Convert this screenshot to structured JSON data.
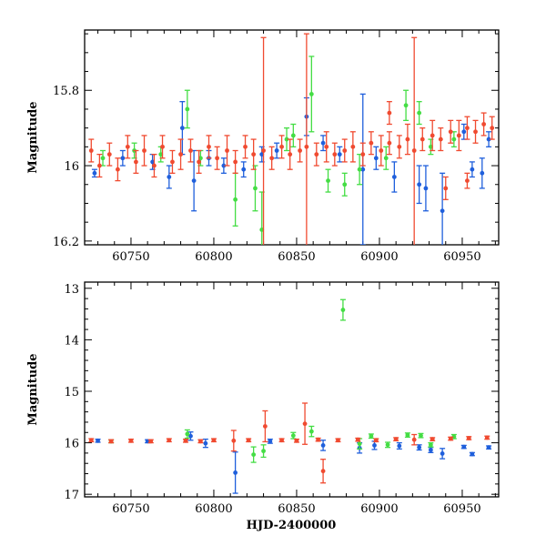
{
  "chart_data": [
    {
      "id": "top",
      "type": "scatter",
      "title": "",
      "xlabel": "",
      "ylabel": "Magnitude",
      "xlim": [
        60722,
        60972
      ],
      "ylim": [
        16.21,
        15.64
      ],
      "y_inverted": true,
      "xticks": [
        60750,
        60800,
        60850,
        60900,
        60950
      ],
      "xtick_labels": [
        "60750",
        "60800",
        "60850",
        "60900",
        "60950"
      ],
      "yticks": [
        15.8,
        16,
        16.2
      ],
      "ytick_labels": [
        "15.8",
        "16",
        "16.2"
      ],
      "series": [
        {
          "name": "blue",
          "color": "#1f5fdc",
          "points": [
            {
              "x": 60728,
              "y": 16.02,
              "e": 0.01
            },
            {
              "x": 60745,
              "y": 15.98,
              "e": 0.02
            },
            {
              "x": 60763,
              "y": 15.99,
              "e": 0.02
            },
            {
              "x": 60773,
              "y": 16.03,
              "e": 0.03
            },
            {
              "x": 60781,
              "y": 15.9,
              "e": 0.07
            },
            {
              "x": 60788,
              "y": 16.04,
              "e": 0.08
            },
            {
              "x": 60797,
              "y": 15.98,
              "e": 0.02
            },
            {
              "x": 60806,
              "y": 16.0,
              "e": 0.02
            },
            {
              "x": 60818,
              "y": 16.01,
              "e": 0.02
            },
            {
              "x": 60829,
              "y": 15.97,
              "e": 0.02
            },
            {
              "x": 60838,
              "y": 15.96,
              "e": 0.02
            },
            {
              "x": 60856,
              "y": 15.87,
              "e": 0.05
            },
            {
              "x": 60866,
              "y": 15.94,
              "e": 0.02
            },
            {
              "x": 60876,
              "y": 15.97,
              "e": 0.02
            },
            {
              "x": 60890,
              "y": 16.01,
              "e": 0.2
            },
            {
              "x": 60898,
              "y": 15.98,
              "e": 0.03
            },
            {
              "x": 60909,
              "y": 16.03,
              "e": 0.04
            },
            {
              "x": 60924,
              "y": 16.05,
              "e": 0.05
            },
            {
              "x": 60928,
              "y": 16.06,
              "e": 0.06
            },
            {
              "x": 60938,
              "y": 16.12,
              "e": 0.1
            },
            {
              "x": 60951,
              "y": 15.91,
              "e": 0.02
            },
            {
              "x": 60956,
              "y": 16.01,
              "e": 0.02
            },
            {
              "x": 60962,
              "y": 16.02,
              "e": 0.04
            },
            {
              "x": 60966,
              "y": 15.93,
              "e": 0.02
            }
          ]
        },
        {
          "name": "green",
          "color": "#44dd44",
          "points": [
            {
              "x": 60733,
              "y": 15.98,
              "e": 0.02
            },
            {
              "x": 60752,
              "y": 15.96,
              "e": 0.02
            },
            {
              "x": 60768,
              "y": 15.97,
              "e": 0.02
            },
            {
              "x": 60784,
              "y": 15.85,
              "e": 0.05
            },
            {
              "x": 60792,
              "y": 15.98,
              "e": 0.02
            },
            {
              "x": 60813,
              "y": 16.09,
              "e": 0.07
            },
            {
              "x": 60825,
              "y": 16.06,
              "e": 0.06
            },
            {
              "x": 60829,
              "y": 16.17,
              "e": 0.1
            },
            {
              "x": 60844,
              "y": 15.93,
              "e": 0.03
            },
            {
              "x": 60848,
              "y": 15.92,
              "e": 0.03
            },
            {
              "x": 60859,
              "y": 15.81,
              "e": 0.1
            },
            {
              "x": 60869,
              "y": 16.04,
              "e": 0.03
            },
            {
              "x": 60879,
              "y": 16.05,
              "e": 0.03
            },
            {
              "x": 60888,
              "y": 16.01,
              "e": 0.04
            },
            {
              "x": 60904,
              "y": 15.98,
              "e": 0.03
            },
            {
              "x": 60916,
              "y": 15.84,
              "e": 0.04
            },
            {
              "x": 60924,
              "y": 15.86,
              "e": 0.03
            },
            {
              "x": 60931,
              "y": 15.95,
              "e": 0.02
            },
            {
              "x": 60945,
              "y": 15.93,
              "e": 0.02
            }
          ]
        },
        {
          "name": "red",
          "color": "#f04a30",
          "points": [
            {
              "x": 60726,
              "y": 15.96,
              "e": 0.03
            },
            {
              "x": 60731,
              "y": 16.0,
              "e": 0.03
            },
            {
              "x": 60737,
              "y": 15.97,
              "e": 0.03
            },
            {
              "x": 60742,
              "y": 16.01,
              "e": 0.03
            },
            {
              "x": 60748,
              "y": 15.95,
              "e": 0.03
            },
            {
              "x": 60753,
              "y": 15.99,
              "e": 0.03
            },
            {
              "x": 60758,
              "y": 15.96,
              "e": 0.04
            },
            {
              "x": 60764,
              "y": 16.0,
              "e": 0.03
            },
            {
              "x": 60769,
              "y": 15.95,
              "e": 0.03
            },
            {
              "x": 60775,
              "y": 15.99,
              "e": 0.03
            },
            {
              "x": 60780,
              "y": 15.97,
              "e": 0.04
            },
            {
              "x": 60786,
              "y": 15.96,
              "e": 0.03
            },
            {
              "x": 60791,
              "y": 15.99,
              "e": 0.03
            },
            {
              "x": 60797,
              "y": 15.95,
              "e": 0.03
            },
            {
              "x": 60802,
              "y": 15.98,
              "e": 0.03
            },
            {
              "x": 60808,
              "y": 15.96,
              "e": 0.04
            },
            {
              "x": 60813,
              "y": 15.99,
              "e": 0.03
            },
            {
              "x": 60819,
              "y": 15.95,
              "e": 0.03
            },
            {
              "x": 60824,
              "y": 15.97,
              "e": 0.04
            },
            {
              "x": 60830,
              "y": 15.96,
              "e": 0.3
            },
            {
              "x": 60835,
              "y": 15.98,
              "e": 0.03
            },
            {
              "x": 60841,
              "y": 15.95,
              "e": 0.03
            },
            {
              "x": 60846,
              "y": 15.97,
              "e": 0.04
            },
            {
              "x": 60852,
              "y": 15.96,
              "e": 0.03
            },
            {
              "x": 60856,
              "y": 15.95,
              "e": 0.3
            },
            {
              "x": 60862,
              "y": 15.97,
              "e": 0.03
            },
            {
              "x": 60868,
              "y": 15.95,
              "e": 0.04
            },
            {
              "x": 60873,
              "y": 15.97,
              "e": 0.03
            },
            {
              "x": 60879,
              "y": 15.96,
              "e": 0.03
            },
            {
              "x": 60884,
              "y": 15.95,
              "e": 0.04
            },
            {
              "x": 60890,
              "y": 15.97,
              "e": 0.03
            },
            {
              "x": 60895,
              "y": 15.94,
              "e": 0.03
            },
            {
              "x": 60901,
              "y": 15.96,
              "e": 0.04
            },
            {
              "x": 60906,
              "y": 15.94,
              "e": 0.03
            },
            {
              "x": 60912,
              "y": 15.95,
              "e": 0.03
            },
            {
              "x": 60917,
              "y": 15.93,
              "e": 0.04
            },
            {
              "x": 60921,
              "y": 15.96,
              "e": 0.3
            },
            {
              "x": 60926,
              "y": 15.93,
              "e": 0.03
            },
            {
              "x": 60932,
              "y": 15.92,
              "e": 0.04
            },
            {
              "x": 60937,
              "y": 15.93,
              "e": 0.03
            },
            {
              "x": 60943,
              "y": 15.91,
              "e": 0.03
            },
            {
              "x": 60948,
              "y": 15.92,
              "e": 0.04
            },
            {
              "x": 60953,
              "y": 15.9,
              "e": 0.03
            },
            {
              "x": 60958,
              "y": 15.91,
              "e": 0.03
            },
            {
              "x": 60963,
              "y": 15.89,
              "e": 0.03
            },
            {
              "x": 60968,
              "y": 15.9,
              "e": 0.03
            },
            {
              "x": 60906,
              "y": 15.86,
              "e": 0.03
            },
            {
              "x": 60940,
              "y": 16.06,
              "e": 0.03
            },
            {
              "x": 60953,
              "y": 16.04,
              "e": 0.02
            }
          ]
        }
      ]
    },
    {
      "id": "bottom",
      "type": "scatter",
      "title": "",
      "xlabel": "HJD-2400000",
      "ylabel": "Magnitude",
      "xlim": [
        60722,
        60972
      ],
      "ylim": [
        17.05,
        12.88
      ],
      "y_inverted": true,
      "xticks": [
        60750,
        60800,
        60850,
        60900,
        60950
      ],
      "xtick_labels": [
        "60750",
        "60800",
        "60850",
        "60900",
        "60950"
      ],
      "yticks": [
        13,
        14,
        15,
        16,
        17
      ],
      "ytick_labels": [
        "13",
        "14",
        "15",
        "16",
        "17"
      ],
      "series": [
        {
          "name": "blue",
          "color": "#1f5fdc",
          "points": [
            {
              "x": 60730,
              "y": 15.96,
              "e": 0.03
            },
            {
              "x": 60760,
              "y": 15.97,
              "e": 0.03
            },
            {
              "x": 60786,
              "y": 15.87,
              "e": 0.08
            },
            {
              "x": 60795,
              "y": 16.01,
              "e": 0.08
            },
            {
              "x": 60813,
              "y": 16.58,
              "e": 0.4
            },
            {
              "x": 60834,
              "y": 15.97,
              "e": 0.04
            },
            {
              "x": 60866,
              "y": 16.05,
              "e": 0.1
            },
            {
              "x": 60888,
              "y": 16.1,
              "e": 0.1
            },
            {
              "x": 60897,
              "y": 16.05,
              "e": 0.08
            },
            {
              "x": 60912,
              "y": 16.06,
              "e": 0.06
            },
            {
              "x": 60924,
              "y": 16.09,
              "e": 0.05
            },
            {
              "x": 60931,
              "y": 16.14,
              "e": 0.05
            },
            {
              "x": 60938,
              "y": 16.21,
              "e": 0.1
            },
            {
              "x": 60951,
              "y": 16.08,
              "e": 0.03
            },
            {
              "x": 60956,
              "y": 16.22,
              "e": 0.03
            },
            {
              "x": 60966,
              "y": 16.09,
              "e": 0.03
            }
          ]
        },
        {
          "name": "green",
          "color": "#44dd44",
          "points": [
            {
              "x": 60738,
              "y": 15.97,
              "e": 0.03
            },
            {
              "x": 60784,
              "y": 15.83,
              "e": 0.08
            },
            {
              "x": 60824,
              "y": 16.23,
              "e": 0.15
            },
            {
              "x": 60830,
              "y": 16.16,
              "e": 0.12
            },
            {
              "x": 60848,
              "y": 15.86,
              "e": 0.06
            },
            {
              "x": 60859,
              "y": 15.78,
              "e": 0.1
            },
            {
              "x": 60878,
              "y": 13.42,
              "e": 0.2
            },
            {
              "x": 60888,
              "y": 16.02,
              "e": 0.1
            },
            {
              "x": 60895,
              "y": 15.87,
              "e": 0.04
            },
            {
              "x": 60905,
              "y": 16.04,
              "e": 0.05
            },
            {
              "x": 60917,
              "y": 15.85,
              "e": 0.04
            },
            {
              "x": 60925,
              "y": 15.86,
              "e": 0.04
            },
            {
              "x": 60931,
              "y": 16.04,
              "e": 0.04
            },
            {
              "x": 60945,
              "y": 15.88,
              "e": 0.04
            }
          ]
        },
        {
          "name": "red",
          "color": "#f04a30",
          "points": [
            {
              "x": 60726,
              "y": 15.95,
              "e": 0.03
            },
            {
              "x": 60738,
              "y": 15.97,
              "e": 0.03
            },
            {
              "x": 60750,
              "y": 15.96,
              "e": 0.03
            },
            {
              "x": 60762,
              "y": 15.97,
              "e": 0.03
            },
            {
              "x": 60773,
              "y": 15.95,
              "e": 0.03
            },
            {
              "x": 60783,
              "y": 15.96,
              "e": 0.03
            },
            {
              "x": 60792,
              "y": 15.97,
              "e": 0.03
            },
            {
              "x": 60800,
              "y": 15.95,
              "e": 0.03
            },
            {
              "x": 60812,
              "y": 15.96,
              "e": 0.2
            },
            {
              "x": 60821,
              "y": 15.95,
              "e": 0.03
            },
            {
              "x": 60831,
              "y": 15.68,
              "e": 0.3
            },
            {
              "x": 60841,
              "y": 15.95,
              "e": 0.03
            },
            {
              "x": 60850,
              "y": 15.96,
              "e": 0.03
            },
            {
              "x": 60855,
              "y": 15.63,
              "e": 0.4
            },
            {
              "x": 60863,
              "y": 15.94,
              "e": 0.03
            },
            {
              "x": 60866,
              "y": 16.55,
              "e": 0.23
            },
            {
              "x": 60875,
              "y": 15.95,
              "e": 0.03
            },
            {
              "x": 60887,
              "y": 15.94,
              "e": 0.03
            },
            {
              "x": 60898,
              "y": 15.95,
              "e": 0.03
            },
            {
              "x": 60910,
              "y": 15.93,
              "e": 0.03
            },
            {
              "x": 60921,
              "y": 15.94,
              "e": 0.1
            },
            {
              "x": 60932,
              "y": 15.93,
              "e": 0.03
            },
            {
              "x": 60943,
              "y": 15.92,
              "e": 0.03
            },
            {
              "x": 60954,
              "y": 15.91,
              "e": 0.03
            },
            {
              "x": 60965,
              "y": 15.9,
              "e": 0.03
            }
          ]
        }
      ]
    }
  ]
}
